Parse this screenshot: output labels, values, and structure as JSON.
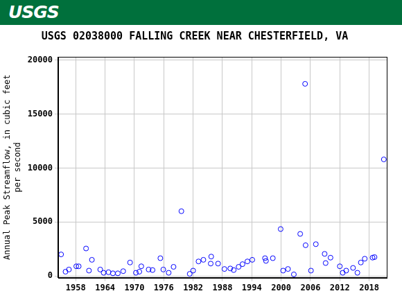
{
  "chart_data": {
    "type": "scatter",
    "logo": "USGS",
    "title": "USGS 02038000 FALLING CREEK NEAR CHESTERFIELD, VA",
    "y_label": [
      "Annual Peak Streamflow, in cubic feet",
      "per second"
    ],
    "x": [
      1955.0,
      1955.9,
      1956.6,
      1958.1,
      1958.6,
      1960.1,
      1960.7,
      1961.3,
      1963.0,
      1963.7,
      1964.7,
      1965.6,
      1966.6,
      1967.7,
      1969.1,
      1970.3,
      1971.0,
      1971.4,
      1972.9,
      1973.7,
      1975.3,
      1975.9,
      1977.0,
      1978.0,
      1979.6,
      1981.3,
      1982.0,
      1983.1,
      1984.1,
      1985.6,
      1985.7,
      1987.1,
      1988.4,
      1989.6,
      1990.3,
      1991.3,
      1992.1,
      1993.1,
      1994.1,
      1996.7,
      1996.9,
      1998.3,
      1999.9,
      2000.4,
      2001.4,
      2002.6,
      2003.9,
      2004.9,
      2005.0,
      2006.1,
      2007.1,
      2008.9,
      2009.1,
      2010.1,
      2012.0,
      2012.6,
      2013.3,
      2014.7,
      2015.6,
      2016.3,
      2017.1,
      2018.7,
      2019.1,
      2021.0
    ],
    "values": [
      2000,
      400,
      600,
      900,
      900,
      2550,
      500,
      1500,
      600,
      300,
      350,
      250,
      250,
      450,
      1250,
      300,
      400,
      900,
      600,
      550,
      1650,
      600,
      300,
      850,
      6000,
      200,
      500,
      1350,
      1500,
      1150,
      1800,
      1150,
      650,
      700,
      550,
      850,
      1100,
      1350,
      1500,
      1650,
      1400,
      1650,
      4350,
      500,
      650,
      150,
      3900,
      17800,
      2850,
      500,
      2950,
      2050,
      1200,
      1700,
      900,
      300,
      500,
      750,
      300,
      1250,
      1600,
      1700,
      1750,
      10800
    ],
    "color": "#0000ff",
    "marker": "open_circle",
    "xlim": [
      1954.4,
      2021.6
    ],
    "xticks": [
      1958,
      1964,
      1970,
      1976,
      1982,
      1988,
      1994,
      2000,
      2006,
      2012,
      2018
    ],
    "ylim": [
      -150,
      20300
    ],
    "yticks": [
      0,
      5000,
      10000,
      15000,
      20000
    ],
    "grid": true
  }
}
